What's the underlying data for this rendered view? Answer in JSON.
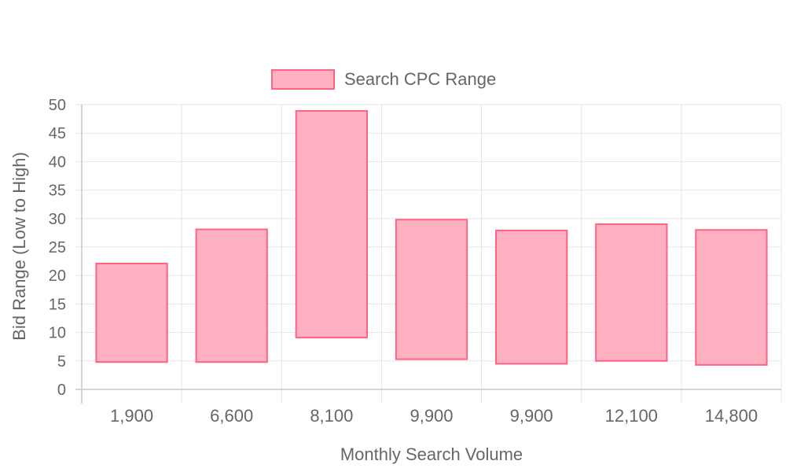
{
  "chart_data": {
    "type": "bar",
    "variant": "floating-range",
    "legend": {
      "position": "top",
      "entries": [
        {
          "label": "Search CPC Range",
          "fill": "#ffb1c1",
          "stroke": "#ff6384"
        }
      ]
    },
    "xlabel": "Monthly Search Volume",
    "ylabel": "Bid Range (Low to High)",
    "categories": [
      "1,900",
      "6,600",
      "8,100",
      "9,900",
      "9,900",
      "12,100",
      "14,800"
    ],
    "series": [
      {
        "name": "Search CPC Range",
        "ranges": [
          [
            4.8,
            22.1
          ],
          [
            4.8,
            28.1
          ],
          [
            9.1,
            48.9
          ],
          [
            5.3,
            29.8
          ],
          [
            4.5,
            27.9
          ],
          [
            5.0,
            29.0
          ],
          [
            4.3,
            28.0
          ]
        ]
      }
    ],
    "ylim": [
      0,
      50
    ],
    "yticks": [
      0,
      5,
      10,
      15,
      20,
      25,
      30,
      35,
      40,
      45,
      50
    ],
    "grid": true,
    "colors": {
      "bar_fill": "#ffb1c1",
      "bar_stroke": "#ff6384",
      "grid": "#e5e5e5",
      "axis": "#c8c8c8",
      "text": "#666666"
    }
  }
}
